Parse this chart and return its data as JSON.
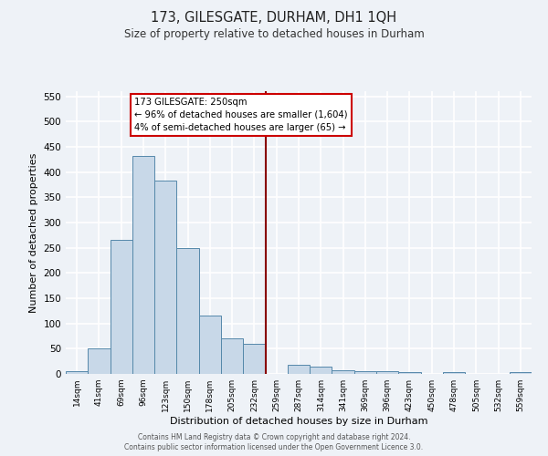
{
  "title": "173, GILESGATE, DURHAM, DH1 1QH",
  "subtitle": "Size of property relative to detached houses in Durham",
  "xlabel": "Distribution of detached houses by size in Durham",
  "ylabel": "Number of detached properties",
  "bin_labels": [
    "14sqm",
    "41sqm",
    "69sqm",
    "96sqm",
    "123sqm",
    "150sqm",
    "178sqm",
    "205sqm",
    "232sqm",
    "259sqm",
    "287sqm",
    "314sqm",
    "341sqm",
    "369sqm",
    "396sqm",
    "423sqm",
    "450sqm",
    "478sqm",
    "505sqm",
    "532sqm",
    "559sqm"
  ],
  "bar_values": [
    5,
    50,
    265,
    432,
    383,
    249,
    115,
    70,
    60,
    0,
    18,
    15,
    8,
    5,
    5,
    3,
    0,
    4,
    0,
    0,
    4
  ],
  "bar_color": "#c8d8e8",
  "bar_edgecolor": "#5588aa",
  "vline_x": 8.5,
  "vline_color": "#880000",
  "annotation_title": "173 GILESGATE: 250sqm",
  "annotation_line1": "← 96% of detached houses are smaller (1,604)",
  "annotation_line2": "4% of semi-detached houses are larger (65) →",
  "annotation_box_edgecolor": "#cc0000",
  "ylim": [
    0,
    560
  ],
  "yticks": [
    0,
    50,
    100,
    150,
    200,
    250,
    300,
    350,
    400,
    450,
    500,
    550
  ],
  "bg_color": "#eef2f7",
  "plot_bg_color": "#eef2f7",
  "grid_color": "#ffffff",
  "footer1": "Contains HM Land Registry data © Crown copyright and database right 2024.",
  "footer2": "Contains public sector information licensed under the Open Government Licence 3.0."
}
